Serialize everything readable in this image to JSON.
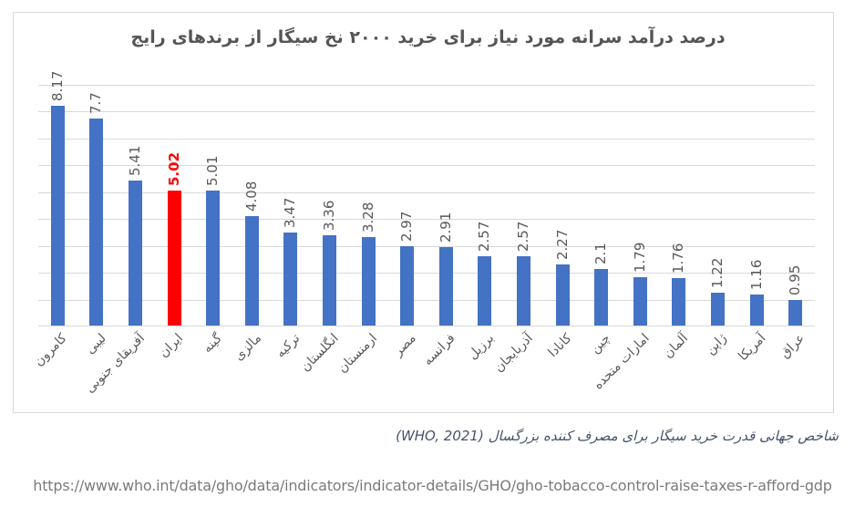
{
  "chart": {
    "title": "درصد درآمد سرانه مورد نیاز برای خرید ۲۰۰۰ نخ سیگار از برندهای رایج"
  },
  "chart_data": {
    "type": "bar",
    "title": "درصد درآمد سرانه مورد نیاز برای خرید ۲۰۰۰ نخ سیگار از برندهای رایج",
    "categories": [
      "کامرون",
      "لیبی",
      "آفریقای جنوبی",
      "ایران",
      "گینه",
      "مالزی",
      "ترکیه",
      "انگلستان",
      "ارمنستان",
      "مصر",
      "فرانسه",
      "برزیل",
      "آذربایجان",
      "کانادا",
      "چین",
      "امارات متحده",
      "آلمان",
      "ژاپن",
      "آمریکا",
      "عراق"
    ],
    "values": [
      8.17,
      7.7,
      5.41,
      5.02,
      5.01,
      4.08,
      3.47,
      3.36,
      3.28,
      2.97,
      2.91,
      2.57,
      2.57,
      2.27,
      2.1,
      1.79,
      1.76,
      1.22,
      1.16,
      0.95
    ],
    "value_labels": [
      "8.17",
      "7.7",
      "5.41",
      "5.02",
      "5.01",
      "4.08",
      "3.47",
      "3.36",
      "3.28",
      "2.97",
      "2.91",
      "2.57",
      "2.57",
      "2.27",
      "2.1",
      "1.79",
      "1.76",
      "1.22",
      "1.16",
      "0.95"
    ],
    "highlight_index": 3,
    "highlight_category": "ایران",
    "xlabel": "",
    "ylabel": "",
    "ylim": [
      0,
      9
    ],
    "gridline_step": 1,
    "grid": "horizontal",
    "legend": "none",
    "bar_color": "#4472C4",
    "highlight_color": "#FF0000",
    "gridline_color": "#D9D9D9",
    "label_color": "#595959",
    "data_label_rotation": 90,
    "category_label_rotation": 45
  },
  "footer": {
    "caption": "شاخص جهانی قدرت خرید سیگار برای مصرف کننده بزرگسال  (WHO, 2021)",
    "url": "https://www.who.int/data/gho/data/indicators/indicator-details/GHO/gho-tobacco-control-raise-taxes-r-afford-gdp"
  }
}
